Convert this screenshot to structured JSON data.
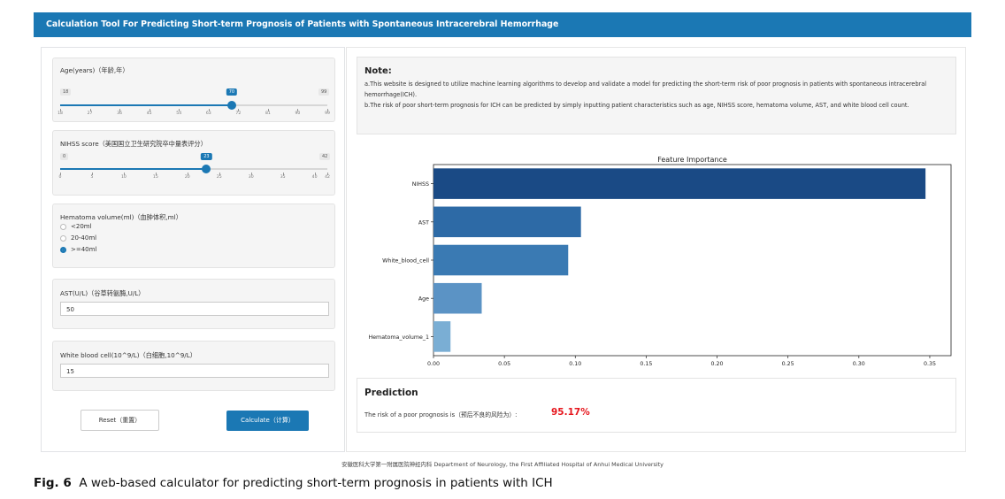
{
  "header": {
    "title": "Calculation Tool For Predicting Short-term Prognosis of Patients with Spontaneous Intracerebral Hemorrhage"
  },
  "age": {
    "label": "Age(years)（年龄,年）",
    "min": 18,
    "max": 99,
    "value": 70,
    "ticks": [
      "18",
      "27",
      "36",
      "45",
      "54",
      "63",
      "72",
      "81",
      "90",
      "99"
    ]
  },
  "nihss": {
    "label": "NIHSS score（美国国立卫生研究院卒中量表评分）",
    "min": 0,
    "max": 42,
    "value": 23,
    "ticks": [
      "0",
      "5",
      "10",
      "15",
      "20",
      "25",
      "30",
      "35",
      "40",
      "42"
    ]
  },
  "hematoma": {
    "label": "Hematoma volume(ml)（血肿体积,ml）",
    "options": [
      "<20ml",
      "20-40ml",
      ">=40ml"
    ],
    "selected": ">=40ml"
  },
  "ast": {
    "label": "AST(U/L)（谷草转氨酶,U/L）",
    "value": "50"
  },
  "wbc": {
    "label": "White blood cell(10^9/L)（白细胞,10^9/L）",
    "value": "15"
  },
  "buttons": {
    "reset": "Reset（重置）",
    "calculate": "Calculate（计算）"
  },
  "note": {
    "title": "Note:",
    "a": "a.This website is designed to utilize machine learning algorithms to develop and validate a model for predicting the short-term risk of poor prognosis in patients with spontaneous intracerebral hemorrhage(ICH).",
    "b": "b.The risk of poor short-term prognosis for ICH can be predicted by simply inputting patient characteristics such as age, NIHSS score, hematoma volume, AST, and white blood cell count."
  },
  "chart_data": {
    "type": "bar",
    "orientation": "horizontal",
    "title": "Feature Importance",
    "categories": [
      "NIHSS",
      "AST",
      "White_blood_cell",
      "Age",
      "Hematoma_volume_1"
    ],
    "values": [
      0.347,
      0.104,
      0.095,
      0.034,
      0.012
    ],
    "xlim": [
      0,
      0.365
    ],
    "xticks": [
      "0.00",
      "0.05",
      "0.10",
      "0.15",
      "0.20",
      "0.25",
      "0.30",
      "0.35"
    ],
    "xtick_values": [
      0,
      0.05,
      0.1,
      0.15,
      0.2,
      0.25,
      0.3,
      0.35
    ],
    "colors": [
      "#1a4a85",
      "#2d6aa6",
      "#3a7ab3",
      "#5b93c5",
      "#7aaed4"
    ]
  },
  "prediction": {
    "title": "Prediction",
    "text": "The risk of a poor prognosis is（预后不良的风险为）:",
    "value": "95.17%"
  },
  "footer": "安徽医科大学第一附属医院神经内科 Department of Neurology, the First Affiliated Hospital of Anhui Medical University",
  "caption": {
    "label": "Fig. 6",
    "text": "A web-based calculator for predicting short-term prognosis in patients with ICH"
  }
}
